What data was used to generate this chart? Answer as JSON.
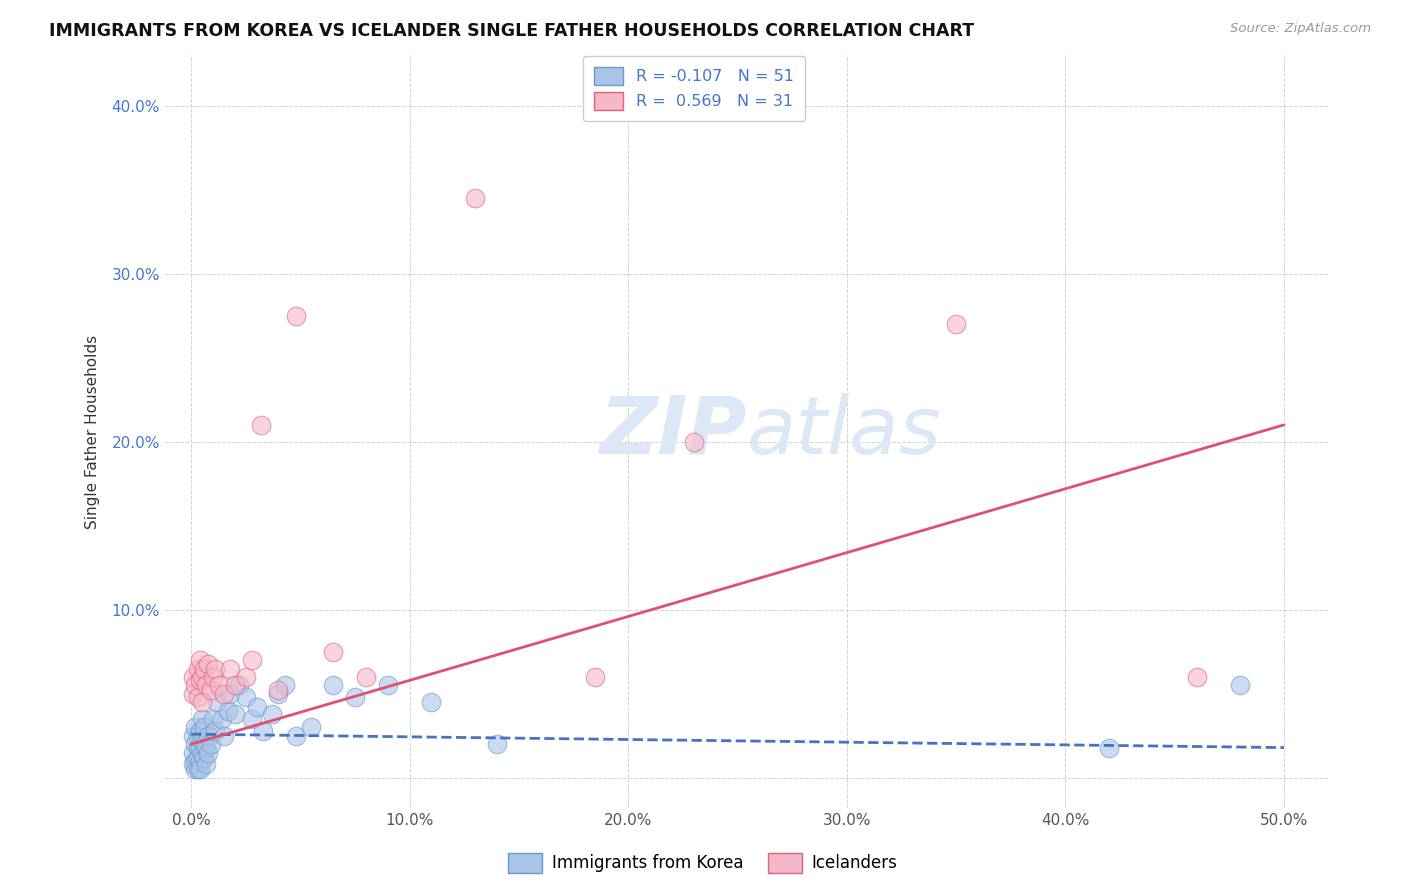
{
  "title": "IMMIGRANTS FROM KOREA VS ICELANDER SINGLE FATHER HOUSEHOLDS CORRELATION CHART",
  "source": "Source: ZipAtlas.com",
  "ylabel": "Single Father Households",
  "x_ticks": [
    0.0,
    0.1,
    0.2,
    0.3,
    0.4,
    0.5
  ],
  "x_tick_labels": [
    "0.0%",
    "10.0%",
    "20.0%",
    "30.0%",
    "40.0%",
    "50.0%"
  ],
  "y_ticks": [
    0.0,
    0.1,
    0.2,
    0.3,
    0.4
  ],
  "y_tick_labels_right": [
    "",
    "10.0%",
    "20.0%",
    "30.0%",
    "40.0%"
  ],
  "xlim": [
    -0.012,
    0.52
  ],
  "ylim": [
    -0.018,
    0.43
  ],
  "legend_labels": [
    "Immigrants from Korea",
    "Icelanders"
  ],
  "korea_R": -0.107,
  "korea_N": 51,
  "iceland_R": 0.569,
  "iceland_N": 31,
  "korea_color": "#aac4e8",
  "iceland_color": "#f5b8c8",
  "korea_edge_color": "#6699cc",
  "iceland_edge_color": "#e06080",
  "korea_line_color": "#4472c4",
  "iceland_line_color": "#e05070",
  "watermark_color": "#dce8f5",
  "korea_x": [
    0.001,
    0.001,
    0.001,
    0.002,
    0.002,
    0.002,
    0.002,
    0.003,
    0.003,
    0.003,
    0.003,
    0.004,
    0.004,
    0.004,
    0.004,
    0.005,
    0.005,
    0.005,
    0.006,
    0.006,
    0.006,
    0.007,
    0.007,
    0.008,
    0.008,
    0.009,
    0.01,
    0.011,
    0.012,
    0.014,
    0.015,
    0.017,
    0.018,
    0.02,
    0.022,
    0.025,
    0.028,
    0.03,
    0.033,
    0.037,
    0.04,
    0.043,
    0.048,
    0.055,
    0.065,
    0.075,
    0.09,
    0.11,
    0.14,
    0.42,
    0.48
  ],
  "korea_y": [
    0.015,
    0.025,
    0.008,
    0.02,
    0.01,
    0.03,
    0.005,
    0.018,
    0.012,
    0.025,
    0.005,
    0.018,
    0.01,
    0.028,
    0.005,
    0.022,
    0.015,
    0.035,
    0.02,
    0.012,
    0.03,
    0.018,
    0.008,
    0.025,
    0.015,
    0.02,
    0.035,
    0.028,
    0.045,
    0.035,
    0.025,
    0.04,
    0.05,
    0.038,
    0.055,
    0.048,
    0.035,
    0.042,
    0.028,
    0.038,
    0.05,
    0.055,
    0.025,
    0.03,
    0.055,
    0.048,
    0.055,
    0.045,
    0.02,
    0.018,
    0.055
  ],
  "iceland_x": [
    0.001,
    0.001,
    0.002,
    0.003,
    0.003,
    0.004,
    0.004,
    0.005,
    0.005,
    0.006,
    0.007,
    0.008,
    0.009,
    0.01,
    0.011,
    0.013,
    0.015,
    0.018,
    0.02,
    0.025,
    0.028,
    0.032,
    0.04,
    0.048,
    0.065,
    0.08,
    0.13,
    0.185,
    0.23,
    0.35,
    0.46
  ],
  "iceland_y": [
    0.05,
    0.06,
    0.055,
    0.065,
    0.048,
    0.058,
    0.07,
    0.06,
    0.045,
    0.065,
    0.055,
    0.068,
    0.052,
    0.06,
    0.065,
    0.055,
    0.05,
    0.065,
    0.055,
    0.06,
    0.07,
    0.21,
    0.052,
    0.275,
    0.075,
    0.06,
    0.345,
    0.06,
    0.2,
    0.27,
    0.06
  ],
  "korea_line_x": [
    0.0,
    0.5
  ],
  "korea_line_y": [
    0.026,
    0.018
  ],
  "iceland_line_x": [
    0.0,
    0.5
  ],
  "iceland_line_y": [
    0.02,
    0.21
  ]
}
